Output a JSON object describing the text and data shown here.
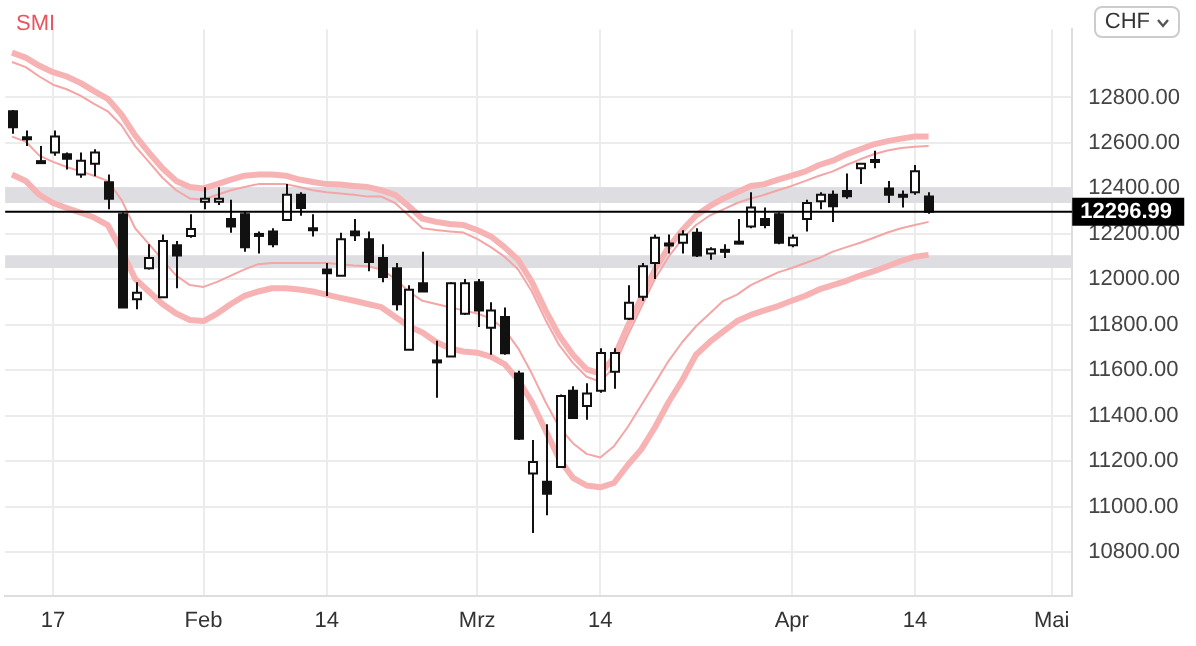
{
  "chart_data": {
    "type": "candlestick",
    "title": "SMI",
    "annotations": [
      "CHF"
    ],
    "categories": [
      null,
      null,
      null,
      "17",
      null,
      null,
      null,
      null,
      null,
      null,
      null,
      null,
      null,
      null,
      "Feb",
      null,
      null,
      null,
      null,
      null,
      null,
      null,
      null,
      "14",
      null,
      null,
      null,
      null,
      null,
      null,
      null,
      null,
      null,
      null,
      "Mrz",
      null,
      null,
      null,
      null,
      null,
      null,
      null,
      null,
      "14",
      null,
      null,
      null,
      null,
      null,
      null,
      null,
      null,
      null,
      null,
      null,
      null,
      null,
      "Apr",
      null,
      null,
      null,
      null,
      null,
      null,
      null,
      null,
      "14",
      null,
      null,
      null,
      null,
      null,
      null,
      null,
      null,
      null,
      "Mai",
      null
    ],
    "ohlc": [
      [
        12739,
        12745,
        12640,
        12669
      ],
      [
        12625,
        12655,
        12586,
        12620
      ],
      [
        12520,
        12586,
        12508,
        12515
      ],
      [
        12558,
        12655,
        12544,
        12628
      ],
      [
        12550,
        12558,
        12483,
        12530
      ],
      [
        12461,
        12558,
        12447,
        12522
      ],
      [
        12508,
        12572,
        12453,
        12558
      ],
      [
        12427,
        12461,
        12308,
        12355
      ],
      [
        12286,
        12294,
        11877,
        11877
      ],
      [
        11913,
        11988,
        11869,
        11941
      ],
      [
        12049,
        12155,
        12044,
        12094
      ],
      [
        11922,
        12197,
        11922,
        12169
      ],
      [
        12150,
        12169,
        11961,
        12105
      ],
      [
        12191,
        12286,
        12183,
        12222
      ],
      [
        12341,
        12405,
        12308,
        12355
      ],
      [
        12341,
        12405,
        12327,
        12355
      ],
      [
        12266,
        12350,
        12205,
        12233
      ],
      [
        12286,
        12300,
        12122,
        12141
      ],
      [
        12200,
        12211,
        12114,
        12195
      ],
      [
        12211,
        12225,
        12141,
        12155
      ],
      [
        12261,
        12419,
        12261,
        12372
      ],
      [
        12372,
        12383,
        12280,
        12314
      ],
      [
        12225,
        12286,
        12189,
        12222
      ],
      [
        12044,
        12072,
        11927,
        12027
      ],
      [
        12016,
        12205,
        12016,
        12177
      ],
      [
        12211,
        12266,
        12169,
        12194
      ],
      [
        12177,
        12211,
        12036,
        12077
      ],
      [
        12094,
        12155,
        11988,
        12011
      ],
      [
        12049,
        12072,
        11863,
        11891
      ],
      [
        11691,
        11974,
        11691,
        11955
      ],
      [
        11983,
        12122,
        11947,
        11947
      ],
      [
        11644,
        11730,
        11480,
        11641
      ],
      [
        11661,
        11988,
        11661,
        11983
      ],
      [
        11849,
        12002,
        11844,
        11983
      ],
      [
        11988,
        12002,
        11791,
        11863
      ],
      [
        11788,
        11900,
        11669,
        11863
      ],
      [
        11835,
        11877,
        11669,
        11675
      ],
      [
        11586,
        11599,
        11294,
        11299
      ],
      [
        11147,
        11294,
        10885,
        11197
      ],
      [
        11111,
        11363,
        10963,
        11058
      ],
      [
        11175,
        11494,
        11175,
        11488
      ],
      [
        11511,
        11530,
        11386,
        11391
      ],
      [
        11444,
        11544,
        11383,
        11499
      ],
      [
        11511,
        11697,
        11502,
        11677
      ],
      [
        11594,
        11697,
        11519,
        11677
      ],
      [
        11827,
        11974,
        11822,
        11897
      ],
      [
        11924,
        12072,
        11905,
        12058
      ],
      [
        12072,
        12197,
        12002,
        12183
      ],
      [
        12155,
        12197,
        12114,
        12158
      ],
      [
        12161,
        12216,
        12114,
        12197
      ],
      [
        12205,
        12225,
        12099,
        12105
      ],
      [
        12114,
        12141,
        12086,
        12133
      ],
      [
        12130,
        12155,
        12094,
        12127
      ],
      [
        12160,
        12266,
        12155,
        12166
      ],
      [
        12233,
        12383,
        12225,
        12316
      ],
      [
        12266,
        12316,
        12225,
        12239
      ],
      [
        12286,
        12294,
        12155,
        12161
      ],
      [
        12150,
        12197,
        12141,
        12183
      ],
      [
        12266,
        12350,
        12211,
        12336
      ],
      [
        12344,
        12383,
        12308,
        12372
      ],
      [
        12372,
        12391,
        12252,
        12322
      ],
      [
        12389,
        12466,
        12355,
        12366
      ],
      [
        12489,
        12511,
        12419,
        12508
      ],
      [
        12525,
        12566,
        12489,
        12517
      ],
      [
        12400,
        12433,
        12336,
        12372
      ],
      [
        12372,
        12391,
        12316,
        12369
      ],
      [
        12383,
        12503,
        12372,
        12475
      ],
      [
        12364,
        12383,
        12289,
        12296.99
      ],
      null,
      null,
      null,
      null,
      null,
      null,
      null,
      null,
      null,
      null
    ],
    "series": [
      {
        "type": "line",
        "color": "#f7b3b3",
        "values": [
          12997,
          12975,
          12939,
          12911,
          12892,
          12864,
          12828,
          12794,
          12725,
          12633,
          12558,
          12489,
          12433,
          12406,
          12400,
          12419,
          12439,
          12456,
          12461,
          12461,
          12456,
          12439,
          12428,
          12419,
          12417,
          12411,
          12406,
          12392,
          12372,
          12322,
          12267,
          12253,
          12244,
          12239,
          12217,
          12189,
          12142,
          12086,
          11989,
          11864,
          11753,
          11669,
          11605,
          11586,
          11656,
          11794,
          11919,
          12044,
          12142,
          12217,
          12281,
          12322,
          12356,
          12383,
          12411,
          12419,
          12439,
          12456,
          12475,
          12503,
          12522,
          12550,
          12572,
          12594,
          12608,
          12619,
          12628,
          12628,
          null,
          null,
          null,
          null,
          null,
          null,
          null,
          null,
          null,
          null
        ]
      },
      {
        "type": "line",
        "color": "#f4a6a6",
        "values": [
          12956,
          12933,
          12892,
          12856,
          12836,
          12808,
          12772,
          12739,
          12678,
          12586,
          12517,
          12447,
          12392,
          12356,
          12350,
          12372,
          12392,
          12406,
          12419,
          12419,
          12419,
          12406,
          12392,
          12383,
          12378,
          12372,
          12364,
          12364,
          12336,
          12281,
          12225,
          12217,
          12211,
          12206,
          12178,
          12142,
          12100,
          12044,
          11947,
          11822,
          11711,
          11633,
          11572,
          11550,
          11614,
          11753,
          11878,
          12003,
          12100,
          12178,
          12239,
          12281,
          12308,
          12336,
          12356,
          12372,
          12392,
          12411,
          12433,
          12456,
          12475,
          12503,
          12528,
          12550,
          12567,
          12578,
          12583,
          12586,
          null,
          null,
          null,
          null,
          null,
          null,
          null,
          null,
          null,
          null
        ]
      },
      {
        "type": "line",
        "color": "#f4a6a6",
        "values": [
          12628,
          12606,
          12544,
          12517,
          12494,
          12475,
          12456,
          12433,
          12350,
          12225,
          12156,
          12086,
          12017,
          11975,
          11967,
          11989,
          12017,
          12044,
          12067,
          12072,
          12072,
          12072,
          12072,
          12072,
          12067,
          12061,
          12058,
          12044,
          12003,
          11947,
          11906,
          11892,
          11878,
          11864,
          11850,
          11828,
          11780,
          11697,
          11586,
          11461,
          11350,
          11280,
          11233,
          11217,
          11267,
          11350,
          11447,
          11544,
          11642,
          11725,
          11794,
          11850,
          11906,
          11933,
          11975,
          12003,
          12031,
          12050,
          12072,
          12094,
          12122,
          12142,
          12161,
          12183,
          12206,
          12225,
          12239,
          12253,
          null,
          null,
          null,
          null,
          null,
          null,
          null,
          null,
          null,
          null
        ]
      },
      {
        "type": "line",
        "color": "#f7b3b3",
        "values": [
          12461,
          12433,
          12372,
          12336,
          12314,
          12294,
          12272,
          12239,
          12128,
          12003,
          11947,
          11892,
          11850,
          11822,
          11817,
          11850,
          11892,
          11928,
          11947,
          11961,
          11961,
          11956,
          11947,
          11933,
          11919,
          11906,
          11892,
          11878,
          11836,
          11794,
          11767,
          11725,
          11697,
          11683,
          11678,
          11661,
          11628,
          11558,
          11461,
          11336,
          11211,
          11128,
          11094,
          11086,
          11105,
          11183,
          11253,
          11350,
          11461,
          11558,
          11669,
          11725,
          11772,
          11817,
          11844,
          11864,
          11883,
          11906,
          11928,
          11956,
          11975,
          11994,
          12017,
          12036,
          12058,
          12081,
          12100,
          12108,
          null,
          null,
          null,
          null,
          null,
          null,
          null,
          null,
          null,
          null
        ]
      }
    ],
    "bands": [
      {
        "axis": "y",
        "from": 12336,
        "to": 12405,
        "color": "#dddde2"
      },
      {
        "axis": "y",
        "from": 12050,
        "to": 12106,
        "color": "#dddde2"
      }
    ],
    "ref_lines": [
      {
        "axis": "y",
        "value": 12296.99,
        "label": "12296.99",
        "color": "#000000"
      }
    ],
    "ylim": [
      10610,
      13100
    ],
    "yticks": [
      {
        "value": 10800,
        "label": "10800.00"
      },
      {
        "value": 11000,
        "label": "11000.00"
      },
      {
        "value": 11200,
        "label": "11200.00"
      },
      {
        "value": 11400,
        "label": "11400.00"
      },
      {
        "value": 11600,
        "label": "11600.00"
      },
      {
        "value": 11800,
        "label": "11800.00"
      },
      {
        "value": 12000,
        "label": "12000.00"
      },
      {
        "value": 12200,
        "label": "12200.00"
      },
      {
        "value": 12400,
        "label": "12400.00"
      },
      {
        "value": 12600,
        "label": "12600.00"
      },
      {
        "value": 12800,
        "label": "12800.00"
      }
    ],
    "grid": true,
    "legend": false
  }
}
